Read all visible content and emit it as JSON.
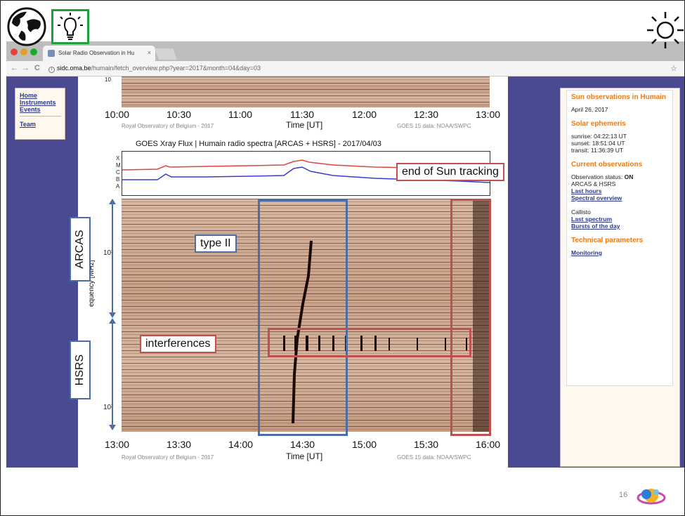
{
  "browser": {
    "tab_title": "Solar Radio Observation in Hu",
    "tab_close": "×",
    "url_host": "sidc.oma.be",
    "url_path": "/humain/fetch_overview.php?year=2017&month=04&day=03",
    "secure_icon": "info-icon",
    "back_icon": "←",
    "forward_icon": "→",
    "reload_icon": "C",
    "star_icon": "☆"
  },
  "left_nav": {
    "items": [
      "Home",
      "Instruments",
      "Events"
    ],
    "team": "Team"
  },
  "right_panel": {
    "title": "Sun observations in Humain",
    "date": "April 26, 2017",
    "ephemeris_title": "Solar ephemeris",
    "sunrise": "sunrise: 04:22:13 UT",
    "sunset": "sunset: 18:51:04 UT",
    "transit": "transit: 11:36:39 UT",
    "current_title": "Current observations",
    "status_label": "Observation status: ",
    "status_value": "ON",
    "instruments": "ARCAS & HSRS",
    "last_hours": "Last hours",
    "spectral_overview": "Spectral overview",
    "callisto": "Callisto",
    "last_spectrum": "Last spectrum",
    "bursts": "Bursts of the day",
    "technical_title": "Technical parameters",
    "monitoring": "Monitoring"
  },
  "top_plot": {
    "ticks": [
      "10:00",
      "10:30",
      "11:00",
      "11:30",
      "12:00",
      "12:30",
      "13:00"
    ],
    "xlabel": "Time [UT]",
    "credit_left": "Royal Observatory of Belgium - 2017",
    "credit_right": "GOES 15 data: NOAA/SWPC",
    "partial_ylabel": "10"
  },
  "main_plot": {
    "title": "GOES Xray Flux | Humain radio spectra [ARCAS + HSRS] - 2017/04/03",
    "goes_levels": [
      "X",
      "M",
      "C",
      "B",
      "A"
    ],
    "ylabel": "equency [MHz]",
    "ytick_upper": "10³",
    "ytick_lower": "10²",
    "ticks": [
      "13:00",
      "13:30",
      "14:00",
      "14:30",
      "15:00",
      "15:30",
      "16:00"
    ],
    "xlabel": "Time [UT]",
    "credit_left": "Royal Observatory of Belgium - 2017",
    "credit_right": "GOES 15 data: NOAA/SWPC",
    "red_curve_color": "#e0463f",
    "blue_curve_color": "#3a3ad0"
  },
  "annotations": {
    "arcas": "ARCAS",
    "hsrs": "HSRS",
    "type_ii": "type II",
    "interferences": "interferences",
    "end_tracking": "end of Sun tracking",
    "blue_color": "#4a6fa5",
    "red_color": "#c0504d"
  },
  "slide": {
    "page_number": "16",
    "globe_icon": "globe-icon",
    "bulb_icon": "lightbulb-icon",
    "sun_icon": "sun-icon",
    "logo_icon": "solar-logo-icon"
  }
}
